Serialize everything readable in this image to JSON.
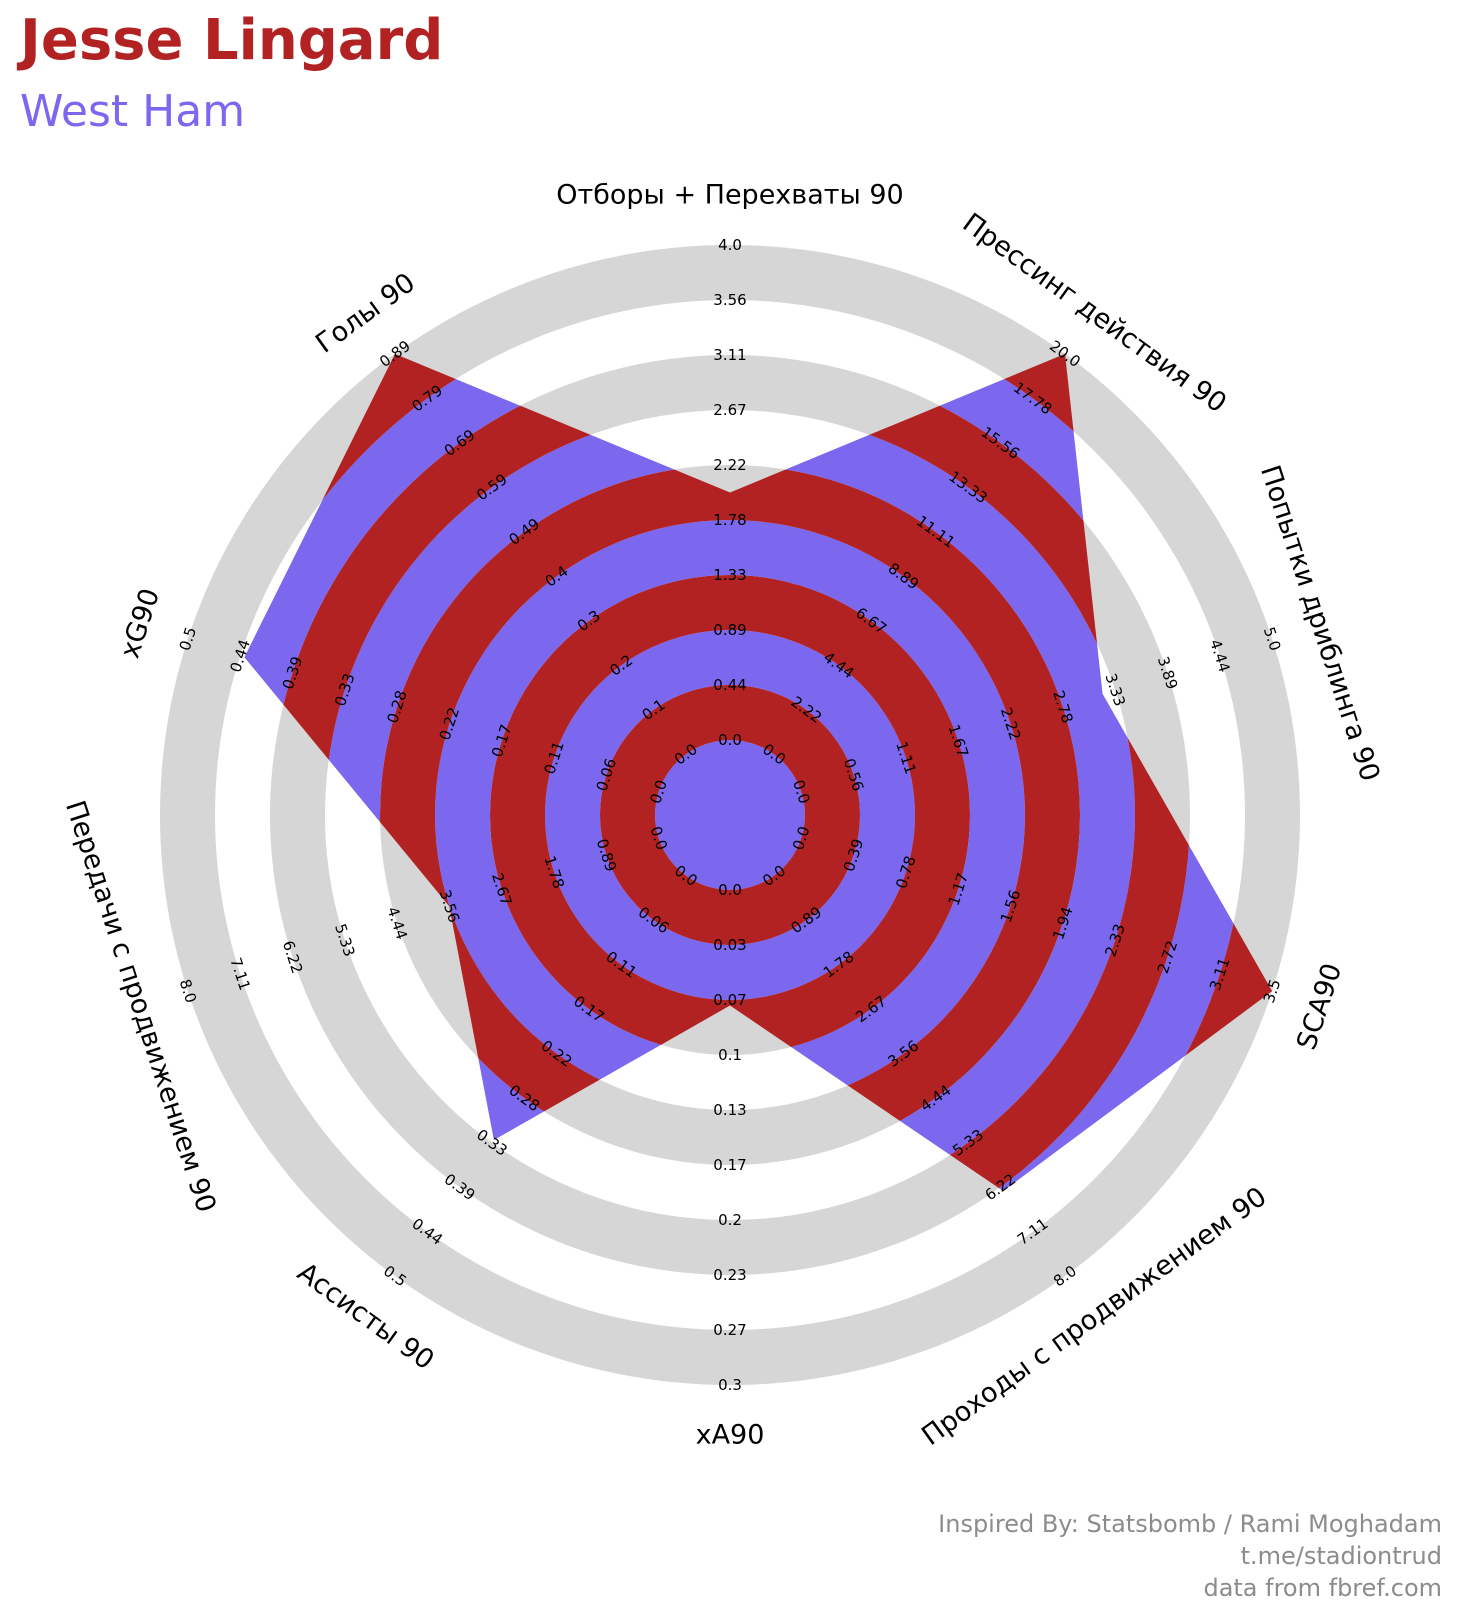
{
  "header": {
    "player": "Jesse Lingard",
    "team": "West Ham"
  },
  "colors": {
    "player_text": "#b22222",
    "team_text": "#7b68ee",
    "band_red": "#b22222",
    "band_blue": "#7b68ee",
    "band_gray": "#d6d6d6",
    "credit_text": "#8c8c8c"
  },
  "credits": {
    "line1": "Inspired By: Statsbomb / Rami Moghadam",
    "line2": "t.me/stadiontrud",
    "line3": "data from fbref.com"
  },
  "chart_data": {
    "type": "radar",
    "title": "Jesse Lingard",
    "subtitle": "West Ham",
    "axes": [
      {
        "label": "Отборы + Перехваты 90",
        "min": 0.0,
        "max": 4.0,
        "value": 2.0,
        "ticks": [
          "0.0",
          "0.44",
          "0.89",
          "1.33",
          "1.78",
          "2.22",
          "2.67",
          "3.11",
          "3.56",
          "4.0"
        ]
      },
      {
        "label": "Прессинг действия 90",
        "min": 0.0,
        "max": 20.0,
        "value": 20.0,
        "ticks": [
          "0.0",
          "2.22",
          "4.44",
          "6.67",
          "8.89",
          "11.11",
          "13.33",
          "15.56",
          "17.78",
          "20.0"
        ]
      },
      {
        "label": "Попытки дриблинга 90",
        "min": 0.0,
        "max": 5.0,
        "value": 3.2,
        "ticks": [
          "0.0",
          "0.56",
          "1.11",
          "1.67",
          "2.22",
          "2.78",
          "3.33",
          "3.89",
          "4.44",
          "5.0"
        ]
      },
      {
        "label": "SCA90",
        "min": 0.0,
        "max": 3.5,
        "value": 3.5,
        "ticks": [
          "0.0",
          "0.39",
          "0.78",
          "1.17",
          "1.56",
          "1.94",
          "2.33",
          "2.72",
          "3.11",
          "3.5"
        ]
      },
      {
        "label": "Проходы с продвижением 90",
        "min": 0.0,
        "max": 8.0,
        "value": 6.3,
        "ticks": [
          "0.0",
          "0.89",
          "1.78",
          "2.67",
          "3.56",
          "4.44",
          "5.33",
          "6.22",
          "7.11",
          "8.0"
        ]
      },
      {
        "label": "xA90",
        "min": 0.0,
        "max": 0.3,
        "value": 0.07,
        "ticks": [
          "0.0",
          "0.03",
          "0.07",
          "0.1",
          "0.13",
          "0.17",
          "0.2",
          "0.23",
          "0.27",
          "0.3"
        ]
      },
      {
        "label": "Ассисты 90",
        "min": 0.0,
        "max": 0.5,
        "value": 0.33,
        "ticks": [
          "0.0",
          "0.06",
          "0.11",
          "0.17",
          "0.22",
          "0.28",
          "0.33",
          "0.39",
          "0.44",
          "0.5"
        ]
      },
      {
        "label": "Передачи с продвижением 90",
        "min": 0.0,
        "max": 8.0,
        "value": 3.56,
        "ticks": [
          "0.0",
          "0.89",
          "1.78",
          "2.67",
          "3.56",
          "4.44",
          "5.33",
          "6.22",
          "7.11",
          "8.0"
        ]
      },
      {
        "label": "xG90",
        "min": 0.0,
        "max": 0.5,
        "value": 0.44,
        "ticks": [
          "0.0",
          "0.06",
          "0.11",
          "0.17",
          "0.22",
          "0.28",
          "0.33",
          "0.39",
          "0.44",
          "0.5"
        ]
      },
      {
        "label": "Голы 90",
        "min": 0.0,
        "max": 0.89,
        "value": 0.89,
        "ticks": [
          "0.0",
          "0.1",
          "0.2",
          "0.3",
          "0.4",
          "0.49",
          "0.59",
          "0.69",
          "0.79",
          "0.89"
        ]
      }
    ]
  }
}
